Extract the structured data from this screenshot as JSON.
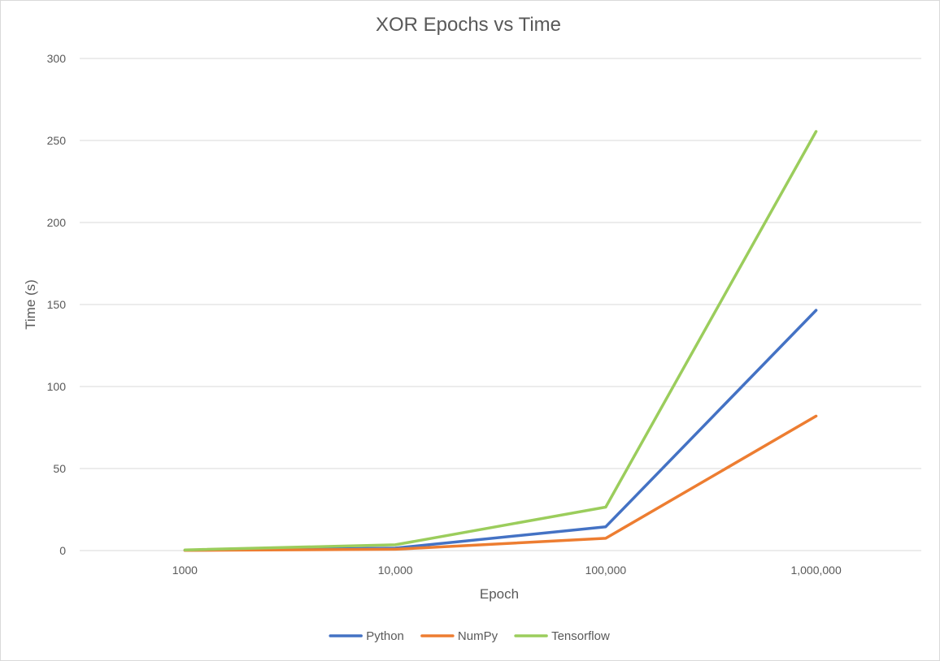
{
  "chart_data": {
    "type": "line",
    "title": "XOR Epochs vs Time",
    "xlabel": "Epoch",
    "ylabel": "Time (s)",
    "categories": [
      "1000",
      "10,000",
      "100,000",
      "1,000,000"
    ],
    "ylim": [
      0,
      300
    ],
    "yticks": [
      0,
      50,
      100,
      150,
      200,
      250,
      300
    ],
    "grid": true,
    "legend_position": "bottom",
    "series": [
      {
        "name": "Python",
        "color": "#4472c4",
        "values": [
          0.15,
          1.5,
          14.5,
          146.5
        ]
      },
      {
        "name": "NumPy",
        "color": "#ed7d31",
        "values": [
          0.1,
          0.8,
          7.5,
          82
        ]
      },
      {
        "name": "Tensorflow",
        "color": "#9bcd5c",
        "values": [
          0.4,
          3.5,
          26.5,
          255.5
        ]
      }
    ]
  }
}
